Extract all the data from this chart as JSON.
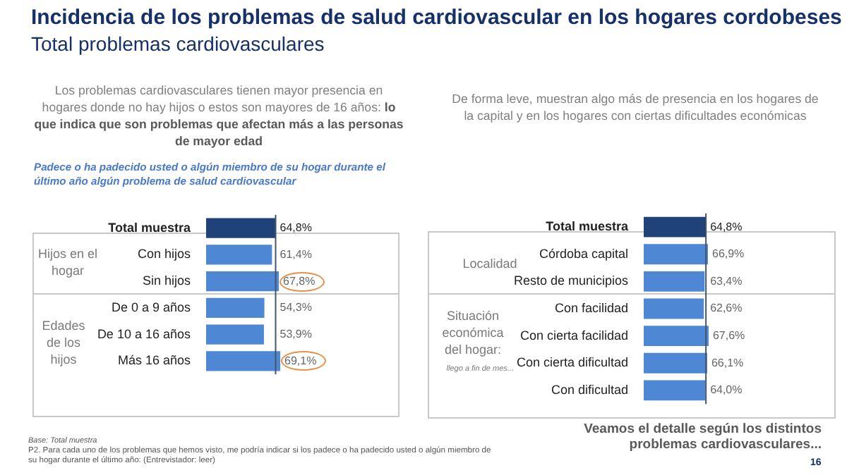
{
  "chart_data": [
    {
      "type": "bar",
      "orientation": "horizontal",
      "title": "Incidencia de los problemas de salud cardiovascular en los hogares cordobeses",
      "subtitle": "Total problemas cardiovasculares",
      "categories": [
        "Total muestra",
        "Con hijos",
        "Sin hijos",
        "De 0 a 9 años",
        "De 10 a 16 años",
        "Más 16 años"
      ],
      "values": [
        64.8,
        61.4,
        67.8,
        54.3,
        53.9,
        69.1
      ],
      "value_labels": [
        "64,8%",
        "61,4%",
        "67,8%",
        "54,3%",
        "53,9%",
        "69,1%"
      ],
      "colors": [
        "#1f4278",
        "#4e88d4",
        "#4e88d4",
        "#4e88d4",
        "#4e88d4",
        "#4e88d4"
      ],
      "ref_lines": [
        {
          "axis": "x",
          "value": 64.8,
          "label": null,
          "color": "#44546a"
        }
      ],
      "legend": false,
      "tick_labels": "y",
      "annotations": [
        "Los problemas cardiovasculares tienen mayor presencia en hogares donde no hay hijos o estos son mayores de 16 años:",
        "lo que indica que son problemas que afectan más a las personas de mayor edad",
        "Padece o ha padecido usted o algún miembro de su hogar durante el último año algún problema de salud cardiovascular",
        "Hijos en el hogar",
        "Edades de los hijos",
        "Base: Total muestra",
        "P2. Para cada uno de los problemas que hemos visto, me podría indicar si los padece o ha padecido usted o algún miembro de su hogar durante el último año: (Entrevistador: leer)"
      ]
    },
    {
      "type": "bar",
      "orientation": "horizontal",
      "categories": [
        "Total muestra",
        "Córdoba capital",
        "Resto de municipios",
        "Con facilidad",
        "Con cierta facilidad",
        "Con cierta dificultad",
        "Con dificultad"
      ],
      "values": [
        64.8,
        66.9,
        63.4,
        62.6,
        67.6,
        66.1,
        64.0
      ],
      "value_labels": [
        "64,8%",
        "66,9%",
        "63,4%",
        "62,6%",
        "67,6%",
        "66,1%",
        "64,0%"
      ],
      "colors": [
        "#1f4278",
        "#4e88d4",
        "#4e88d4",
        "#4e88d4",
        "#4e88d4",
        "#4e88d4",
        "#4e88d4"
      ],
      "ref_lines": [
        {
          "axis": "x",
          "value": 64.8,
          "label": null,
          "color": "#44546a"
        }
      ],
      "legend": false,
      "tick_labels": "y",
      "annotations": [
        "De forma leve, muestran algo más de presencia en los hogares de la capital y en los hogares con ciertas dificultades económicas",
        "Localidad",
        "Situación económica del hogar:",
        "llego a fin de mes...",
        "Veamos el detalle según los distintos problemas cardiovasculares...",
        "16"
      ]
    }
  ]
}
